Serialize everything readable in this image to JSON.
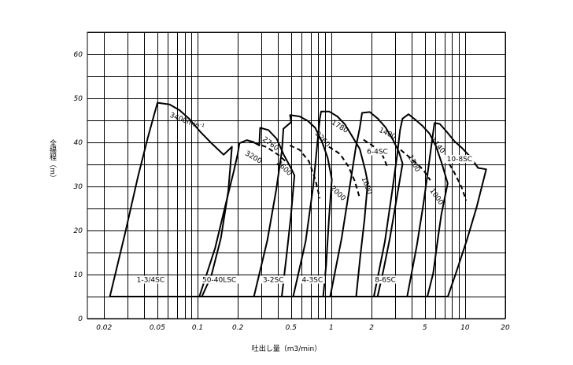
{
  "chart_data": {
    "type": "line",
    "title": "",
    "xlabel": "吐出し量（m3/min）",
    "ylabel": "全揚程（m）",
    "x_scale": "log",
    "xlim": [
      0.015,
      20
    ],
    "ylim": [
      0,
      65
    ],
    "x_ticks": [
      {
        "value": 0.02,
        "label": "0.02"
      },
      {
        "value": 0.05,
        "label": "0.05"
      },
      {
        "value": 0.1,
        "label": "0.1"
      },
      {
        "value": 0.2,
        "label": "0.2"
      },
      {
        "value": 0.5,
        "label": "0.5"
      },
      {
        "value": 1,
        "label": "1"
      },
      {
        "value": 2,
        "label": "2"
      },
      {
        "value": 5,
        "label": "5"
      },
      {
        "value": 10,
        "label": "10"
      },
      {
        "value": 20,
        "label": "20"
      }
    ],
    "x_gridlines": [
      0.02,
      0.03,
      0.04,
      0.05,
      0.06,
      0.07,
      0.08,
      0.09,
      0.1,
      0.2,
      0.3,
      0.4,
      0.5,
      0.6,
      0.7,
      0.8,
      0.9,
      1,
      2,
      3,
      4,
      5,
      6,
      7,
      8,
      9,
      10,
      20
    ],
    "y_ticks": [
      {
        "value": 0,
        "label": "0"
      },
      {
        "value": 10,
        "label": "10"
      },
      {
        "value": 20,
        "label": "20"
      },
      {
        "value": 30,
        "label": "30"
      },
      {
        "value": 40,
        "label": "40"
      },
      {
        "value": 50,
        "label": "50"
      },
      {
        "value": 60,
        "label": "60"
      }
    ],
    "y_gridlines": [
      0,
      5,
      10,
      15,
      20,
      25,
      30,
      35,
      40,
      45,
      50,
      55,
      60,
      65
    ],
    "grid": true,
    "series": [
      {
        "name": "1-3/4SC",
        "points": [
          [
            0.0221,
            5.0
          ],
          [
            0.0288,
            19.5
          ],
          [
            0.0357,
            32.0
          ],
          [
            0.0424,
            41.0
          ],
          [
            0.0471,
            46.0
          ],
          [
            0.0502,
            49.0
          ],
          [
            0.0617,
            48.6
          ],
          [
            0.0734,
            47.3
          ],
          [
            0.0869,
            45.3
          ],
          [
            0.1055,
            42.3
          ],
          [
            0.1262,
            39.9
          ],
          [
            0.1567,
            37.2
          ],
          [
            0.1809,
            39.0
          ],
          [
            0.1696,
            28.9
          ],
          [
            0.1495,
            18.3
          ],
          [
            0.1266,
            9.7
          ],
          [
            0.1077,
            5.0
          ]
        ],
        "speed_labels": [
          {
            "text": "3400min",
            "sup": "-1",
            "x": 0.082,
            "y": 44.3,
            "rotate": 22
          },
          {
            "text": "3200",
            "x": 0.257,
            "y": 36.2,
            "rotate": 30
          }
        ]
      },
      {
        "name": "50-40LSC",
        "points": [
          [
            0.1032,
            5.0
          ],
          [
            0.1353,
            16.0
          ],
          [
            0.1686,
            28.0
          ],
          [
            0.1867,
            33.5
          ],
          [
            0.1994,
            37.3
          ],
          [
            0.2056,
            39.8
          ],
          [
            0.2335,
            40.5
          ],
          [
            0.2603,
            40.1
          ],
          [
            0.2895,
            39.3
          ],
          [
            0.2935,
            43.3
          ],
          [
            0.3387,
            42.8
          ],
          [
            0.3908,
            40.8
          ],
          [
            0.4407,
            37.2
          ],
          [
            0.4989,
            34.2
          ],
          [
            0.5303,
            32.5
          ],
          [
            0.4986,
            23.3
          ],
          [
            0.4643,
            14.7
          ],
          [
            0.4264,
            5.0
          ]
        ]
      },
      {
        "name": "3-2SC",
        "points": [
          [
            0.2639,
            5.0
          ],
          [
            0.3323,
            17.7
          ],
          [
            0.3871,
            29.2
          ],
          [
            0.4275,
            38.2
          ],
          [
            0.4384,
            43.1
          ],
          [
            0.5014,
            44.6
          ],
          [
            0.4917,
            46.2
          ],
          [
            0.5787,
            45.9
          ],
          [
            0.6672,
            44.9
          ],
          [
            0.7578,
            43.3
          ],
          [
            0.8549,
            40.0
          ],
          [
            0.9391,
            36.5
          ],
          [
            1.0089,
            31.6
          ],
          [
            0.9616,
            22.8
          ],
          [
            0.9143,
            12.0
          ],
          [
            0.8696,
            5.0
          ]
        ],
        "speed_labels": [
          {
            "text": "2760",
            "x": 0.344,
            "y": 39.3,
            "rotate": 37
          },
          {
            "text": "2600",
            "x": 0.433,
            "y": 33.8,
            "rotate": 45
          }
        ]
      },
      {
        "name": "4-3SC",
        "points": [
          [
            0.5185,
            5.0
          ],
          [
            0.6427,
            17.5
          ],
          [
            0.7315,
            30.0
          ],
          [
            0.7934,
            40.9
          ],
          [
            0.8214,
            45.5
          ],
          [
            0.8398,
            47.0
          ],
          [
            0.9657,
            47.0
          ],
          [
            1.1092,
            45.9
          ],
          [
            1.2645,
            44.1
          ],
          [
            1.4374,
            41.3
          ],
          [
            1.6319,
            38.5
          ],
          [
            1.7998,
            33.5
          ],
          [
            1.8726,
            30.9
          ],
          [
            1.7709,
            22.5
          ],
          [
            1.6509,
            14.4
          ],
          [
            1.5348,
            5.0
          ]
        ],
        "speed_labels": [
          {
            "text": "2260",
            "x": 0.837,
            "y": 40.4,
            "rotate": 48
          },
          {
            "text": "2000",
            "x": 1.094,
            "y": 28.1,
            "rotate": 45
          }
        ]
      },
      {
        "name": "6-4SC",
        "points": [
          [
            0.9813,
            5.0
          ],
          [
            1.1941,
            18.2
          ],
          [
            1.3636,
            29.3
          ],
          [
            1.5248,
            38.9
          ],
          [
            1.6323,
            43.3
          ],
          [
            1.6978,
            46.7
          ],
          [
            1.9375,
            46.9
          ],
          [
            2.2296,
            45.4
          ],
          [
            2.5449,
            43.4
          ],
          [
            2.8875,
            40.6
          ],
          [
            3.1955,
            37.9
          ],
          [
            3.4125,
            35.2
          ],
          [
            3.0738,
            27.1
          ],
          [
            2.7404,
            18.2
          ],
          [
            2.4395,
            10.6
          ],
          [
            2.2175,
            5.0
          ]
        ],
        "speed_labels": [
          {
            "text": "1780",
            "x": 1.135,
            "y": 43.2,
            "rotate": 32
          },
          {
            "text": "1600",
            "x": 1.781,
            "y": 30.0,
            "rotate": 68
          }
        ]
      },
      {
        "name": "8-6SC",
        "points": [
          [
            2.081,
            5.0
          ],
          [
            2.5109,
            17.4
          ],
          [
            2.8614,
            29.2
          ],
          [
            3.1082,
            37.1
          ],
          [
            3.2684,
            42.8
          ],
          [
            3.4086,
            45.4
          ],
          [
            3.7762,
            46.4
          ],
          [
            4.2652,
            45.1
          ],
          [
            4.8218,
            43.7
          ],
          [
            5.4255,
            42.0
          ],
          [
            6.0541,
            39.2
          ],
          [
            6.6874,
            35.3
          ],
          [
            7.4149,
            30.7
          ],
          [
            6.6515,
            23.7
          ],
          [
            6.3095,
            18.9
          ],
          [
            5.7775,
            10.3
          ],
          [
            5.2311,
            5.0
          ]
        ],
        "speed_labels": [
          {
            "text": "1400",
            "x": 2.592,
            "y": 41.6,
            "rotate": 25
          },
          {
            "text": "1300",
            "x": 4.018,
            "y": 35.0,
            "rotate": 62
          }
        ]
      },
      {
        "name": "10-8SC",
        "points": [
          [
            3.6911,
            5.0
          ],
          [
            4.364,
            16.7
          ],
          [
            4.8935,
            26.2
          ],
          [
            5.3079,
            34.0
          ],
          [
            5.5932,
            39.2
          ],
          [
            5.9065,
            44.4
          ],
          [
            6.4698,
            44.2
          ],
          [
            7.2627,
            42.5
          ],
          [
            8.3049,
            40.3
          ],
          [
            9.5105,
            38.7
          ],
          [
            10.9048,
            36.8
          ],
          [
            12.5226,
            34.2
          ],
          [
            14.3814,
            33.9
          ],
          [
            12.2209,
            25.3
          ],
          [
            10.3035,
            17.8
          ],
          [
            8.5897,
            10.5
          ],
          [
            7.4405,
            5.0
          ]
        ],
        "speed_labels": [
          {
            "text": "1140",
            "x": 6.087,
            "y": 39.0,
            "rotate": 50
          },
          {
            "text": "1000",
            "x": 5.944,
            "y": 27.4,
            "rotate": 55
          }
        ]
      }
    ],
    "reduced_speed_curves": [
      [
        [
          0.2335,
          40.5
        ],
        [
          0.33,
          38.9
        ],
        [
          0.4,
          37.2
        ],
        [
          0.46,
          35.6
        ]
      ],
      [
        [
          0.49,
          39.3
        ],
        [
          0.58,
          38.3
        ],
        [
          0.68,
          35.7
        ],
        [
          0.76,
          31.5
        ],
        [
          0.82,
          27.3
        ]
      ],
      [
        [
          0.96,
          39.0
        ],
        [
          1.16,
          37.4
        ],
        [
          1.34,
          34.6
        ],
        [
          1.5,
          31.2
        ],
        [
          1.62,
          27.7
        ]
      ],
      [
        [
          1.74,
          40.6
        ],
        [
          2.05,
          39.2
        ],
        [
          2.4,
          37.3
        ],
        [
          2.65,
          34.2
        ]
      ],
      [
        [
          3.3,
          38.3
        ],
        [
          4.0,
          36.2
        ],
        [
          4.85,
          33.9
        ],
        [
          5.5,
          31.4
        ]
      ],
      [
        [
          7.1,
          36.6
        ],
        [
          8.2,
          33.5
        ],
        [
          9.4,
          29.9
        ],
        [
          10.2,
          26.8
        ]
      ]
    ],
    "model_labels": [
      {
        "text": "1-3/4SC",
        "x": 0.0446,
        "y": 8.3
      },
      {
        "text": "50-40LSC",
        "x": 0.1454,
        "y": 8.3
      },
      {
        "text": "3-2SC",
        "x": 0.3682,
        "y": 8.3
      },
      {
        "text": "4-3SC",
        "x": 0.7214,
        "y": 8.3
      },
      {
        "text": "8-6SC",
        "x": 2.5347,
        "y": 8.3
      },
      {
        "text": "6-4SC",
        "x": 2.2111,
        "y": 37.4
      },
      {
        "text": "10-8SC",
        "x": 9.1015,
        "y": 35.7
      }
    ]
  }
}
